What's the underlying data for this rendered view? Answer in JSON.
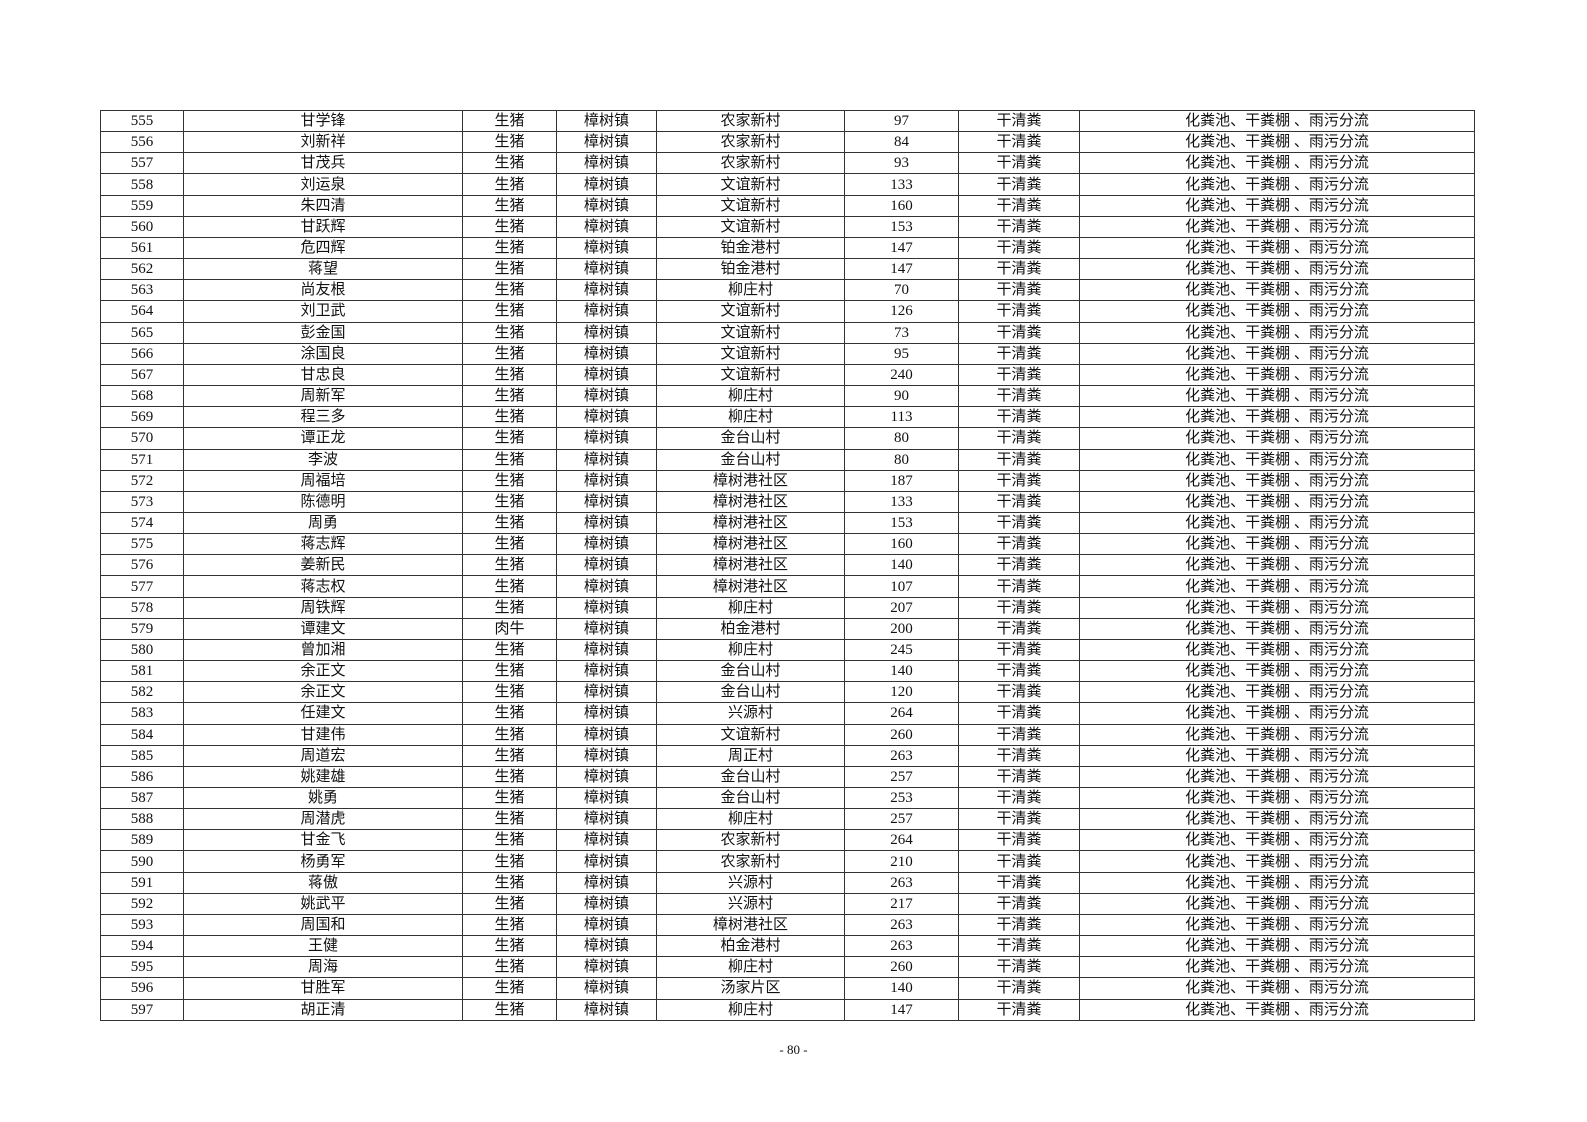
{
  "table": {
    "rows": [
      [
        "555",
        "甘学锋",
        "生猪",
        "樟树镇",
        "农家新村",
        "97",
        "干清粪",
        "化粪池、干粪棚 、雨污分流"
      ],
      [
        "556",
        "刘新祥",
        "生猪",
        "樟树镇",
        "农家新村",
        "84",
        "干清粪",
        "化粪池、干粪棚 、雨污分流"
      ],
      [
        "557",
        "甘茂兵",
        "生猪",
        "樟树镇",
        "农家新村",
        "93",
        "干清粪",
        "化粪池、干粪棚 、雨污分流"
      ],
      [
        "558",
        "刘运泉",
        "生猪",
        "樟树镇",
        "文谊新村",
        "133",
        "干清粪",
        "化粪池、干粪棚 、雨污分流"
      ],
      [
        "559",
        "朱四清",
        "生猪",
        "樟树镇",
        "文谊新村",
        "160",
        "干清粪",
        "化粪池、干粪棚 、雨污分流"
      ],
      [
        "560",
        "甘跃辉",
        "生猪",
        "樟树镇",
        "文谊新村",
        "153",
        "干清粪",
        "化粪池、干粪棚 、雨污分流"
      ],
      [
        "561",
        "危四辉",
        "生猪",
        "樟树镇",
        "铂金港村",
        "147",
        "干清粪",
        "化粪池、干粪棚 、雨污分流"
      ],
      [
        "562",
        "蒋望",
        "生猪",
        "樟树镇",
        "铂金港村",
        "147",
        "干清粪",
        "化粪池、干粪棚 、雨污分流"
      ],
      [
        "563",
        "尚友根",
        "生猪",
        "樟树镇",
        "柳庄村",
        "70",
        "干清粪",
        "化粪池、干粪棚 、雨污分流"
      ],
      [
        "564",
        "刘卫武",
        "生猪",
        "樟树镇",
        "文谊新村",
        "126",
        "干清粪",
        "化粪池、干粪棚 、雨污分流"
      ],
      [
        "565",
        "彭金国",
        "生猪",
        "樟树镇",
        "文谊新村",
        "73",
        "干清粪",
        "化粪池、干粪棚 、雨污分流"
      ],
      [
        "566",
        "涂国良",
        "生猪",
        "樟树镇",
        "文谊新村",
        "95",
        "干清粪",
        "化粪池、干粪棚 、雨污分流"
      ],
      [
        "567",
        "甘忠良",
        "生猪",
        "樟树镇",
        "文谊新村",
        "240",
        "干清粪",
        "化粪池、干粪棚 、雨污分流"
      ],
      [
        "568",
        "周新军",
        "生猪",
        "樟树镇",
        "柳庄村",
        "90",
        "干清粪",
        "化粪池、干粪棚 、雨污分流"
      ],
      [
        "569",
        "程三多",
        "生猪",
        "樟树镇",
        "柳庄村",
        "113",
        "干清粪",
        "化粪池、干粪棚 、雨污分流"
      ],
      [
        "570",
        "谭正龙",
        "生猪",
        "樟树镇",
        "金台山村",
        "80",
        "干清粪",
        "化粪池、干粪棚 、雨污分流"
      ],
      [
        "571",
        "李波",
        "生猪",
        "樟树镇",
        "金台山村",
        "80",
        "干清粪",
        "化粪池、干粪棚 、雨污分流"
      ],
      [
        "572",
        "周福培",
        "生猪",
        "樟树镇",
        "樟树港社区",
        "187",
        "干清粪",
        "化粪池、干粪棚 、雨污分流"
      ],
      [
        "573",
        "陈德明",
        "生猪",
        "樟树镇",
        "樟树港社区",
        "133",
        "干清粪",
        "化粪池、干粪棚 、雨污分流"
      ],
      [
        "574",
        "周勇",
        "生猪",
        "樟树镇",
        "樟树港社区",
        "153",
        "干清粪",
        "化粪池、干粪棚 、雨污分流"
      ],
      [
        "575",
        "蒋志辉",
        "生猪",
        "樟树镇",
        "樟树港社区",
        "160",
        "干清粪",
        "化粪池、干粪棚 、雨污分流"
      ],
      [
        "576",
        "姜新民",
        "生猪",
        "樟树镇",
        "樟树港社区",
        "140",
        "干清粪",
        "化粪池、干粪棚 、雨污分流"
      ],
      [
        "577",
        "蒋志权",
        "生猪",
        "樟树镇",
        "樟树港社区",
        "107",
        "干清粪",
        "化粪池、干粪棚 、雨污分流"
      ],
      [
        "578",
        "周铁辉",
        "生猪",
        "樟树镇",
        "柳庄村",
        "207",
        "干清粪",
        "化粪池、干粪棚 、雨污分流"
      ],
      [
        "579",
        "谭建文",
        "肉牛",
        "樟树镇",
        "柏金港村",
        "200",
        "干清粪",
        "化粪池、干粪棚 、雨污分流"
      ],
      [
        "580",
        "曾加湘",
        "生猪",
        "樟树镇",
        "柳庄村",
        "245",
        "干清粪",
        "化粪池、干粪棚 、雨污分流"
      ],
      [
        "581",
        "余正文",
        "生猪",
        "樟树镇",
        "金台山村",
        "140",
        "干清粪",
        "化粪池、干粪棚 、雨污分流"
      ],
      [
        "582",
        "余正文",
        "生猪",
        "樟树镇",
        "金台山村",
        "120",
        "干清粪",
        "化粪池、干粪棚 、雨污分流"
      ],
      [
        "583",
        "任建文",
        "生猪",
        "樟树镇",
        "兴源村",
        "264",
        "干清粪",
        "化粪池、干粪棚 、雨污分流"
      ],
      [
        "584",
        "甘建伟",
        "生猪",
        "樟树镇",
        "文谊新村",
        "260",
        "干清粪",
        "化粪池、干粪棚 、雨污分流"
      ],
      [
        "585",
        "周道宏",
        "生猪",
        "樟树镇",
        "周正村",
        "263",
        "干清粪",
        "化粪池、干粪棚 、雨污分流"
      ],
      [
        "586",
        "姚建雄",
        "生猪",
        "樟树镇",
        "金台山村",
        "257",
        "干清粪",
        "化粪池、干粪棚 、雨污分流"
      ],
      [
        "587",
        "姚勇",
        "生猪",
        "樟树镇",
        "金台山村",
        "253",
        "干清粪",
        "化粪池、干粪棚 、雨污分流"
      ],
      [
        "588",
        "周潜虎",
        "生猪",
        "樟树镇",
        "柳庄村",
        "257",
        "干清粪",
        "化粪池、干粪棚 、雨污分流"
      ],
      [
        "589",
        "甘金飞",
        "生猪",
        "樟树镇",
        "农家新村",
        "264",
        "干清粪",
        "化粪池、干粪棚 、雨污分流"
      ],
      [
        "590",
        "杨勇军",
        "生猪",
        "樟树镇",
        "农家新村",
        "210",
        "干清粪",
        "化粪池、干粪棚 、雨污分流"
      ],
      [
        "591",
        "蒋傲",
        "生猪",
        "樟树镇",
        "兴源村",
        "263",
        "干清粪",
        "化粪池、干粪棚 、雨污分流"
      ],
      [
        "592",
        "姚武平",
        "生猪",
        "樟树镇",
        "兴源村",
        "217",
        "干清粪",
        "化粪池、干粪棚 、雨污分流"
      ],
      [
        "593",
        "周国和",
        "生猪",
        "樟树镇",
        "樟树港社区",
        "263",
        "干清粪",
        "化粪池、干粪棚 、雨污分流"
      ],
      [
        "594",
        "王健",
        "生猪",
        "樟树镇",
        "柏金港村",
        "263",
        "干清粪",
        "化粪池、干粪棚 、雨污分流"
      ],
      [
        "595",
        "周海",
        "生猪",
        "樟树镇",
        "柳庄村",
        "260",
        "干清粪",
        "化粪池、干粪棚 、雨污分流"
      ],
      [
        "596",
        "甘胜军",
        "生猪",
        "樟树镇",
        "汤家片区",
        "140",
        "干清粪",
        "化粪池、干粪棚 、雨污分流"
      ],
      [
        "597",
        "胡正清",
        "生猪",
        "樟树镇",
        "柳庄村",
        "147",
        "干清粪",
        "化粪池、干粪棚 、雨污分流"
      ]
    ]
  },
  "footer": {
    "page_number": "- 80 -"
  }
}
